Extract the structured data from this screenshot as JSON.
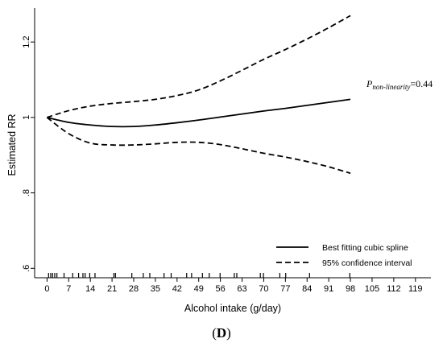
{
  "chart_data": {
    "type": "line",
    "xlabel": "Alcohol intake (g/day)",
    "ylabel": "Estimated RR",
    "xlim": [
      -4,
      124
    ],
    "ylim": [
      0.575,
      1.29
    ],
    "x_ticks": [
      0,
      7,
      14,
      21,
      28,
      35,
      42,
      49,
      56,
      63,
      70,
      77,
      84,
      91,
      98,
      105,
      112,
      119
    ],
    "x_tick_labels": [
      "0",
      "7",
      "14",
      "21",
      "28",
      "35",
      "42",
      "49",
      "56",
      "63",
      "70",
      "77",
      "84",
      "91",
      "98",
      "105",
      "112",
      "119"
    ],
    "y_ticks": [
      0.6,
      0.8,
      1.0,
      1.2
    ],
    "y_tick_labels": [
      ".6",
      ".8",
      "1",
      "1.2"
    ],
    "series": [
      {
        "name": "Best fitting cubic spline",
        "style": "solid",
        "x": [
          0,
          7,
          14,
          21,
          28,
          35,
          42,
          49,
          56,
          63,
          70,
          77,
          84,
          91,
          98
        ],
        "y": [
          1.0,
          0.987,
          0.98,
          0.976,
          0.976,
          0.98,
          0.986,
          0.993,
          1.001,
          1.009,
          1.017,
          1.024,
          1.032,
          1.04,
          1.048
        ]
      },
      {
        "name": "95% confidence interval",
        "style": "dashed",
        "x": [
          0,
          7,
          14,
          21,
          28,
          35,
          42,
          49,
          56,
          63,
          70,
          77,
          84,
          91,
          98
        ],
        "y": [
          1.0,
          1.018,
          1.03,
          1.037,
          1.042,
          1.048,
          1.058,
          1.073,
          1.097,
          1.125,
          1.154,
          1.18,
          1.208,
          1.238,
          1.27
        ]
      },
      {
        "name": "",
        "style": "dashed",
        "x": [
          0,
          7,
          14,
          21,
          28,
          35,
          42,
          49,
          56,
          63,
          70,
          77,
          84,
          91,
          98
        ],
        "y": [
          1.0,
          0.957,
          0.932,
          0.927,
          0.927,
          0.93,
          0.934,
          0.934,
          0.928,
          0.917,
          0.905,
          0.895,
          0.883,
          0.869,
          0.852
        ]
      }
    ],
    "rug_x": [
      0.5,
      1.2,
      1.8,
      2.5,
      3.2,
      5.5,
      8.3,
      10.2,
      11.6,
      12.3,
      13.8,
      15.5,
      21.6,
      22.1,
      27.4,
      31.1,
      33.2,
      37.8,
      40.1,
      45.1,
      46.7,
      50.2,
      52.4,
      55.9,
      60.5,
      61.3,
      68.9,
      69.9,
      75.2,
      77.1,
      84.8,
      97.8
    ],
    "annotation": {
      "p_label": "P",
      "p_subscript": "non-linearity",
      "p_value": "=0.44"
    },
    "legend": {
      "position": "bottom-right"
    },
    "panel_label": "D"
  }
}
